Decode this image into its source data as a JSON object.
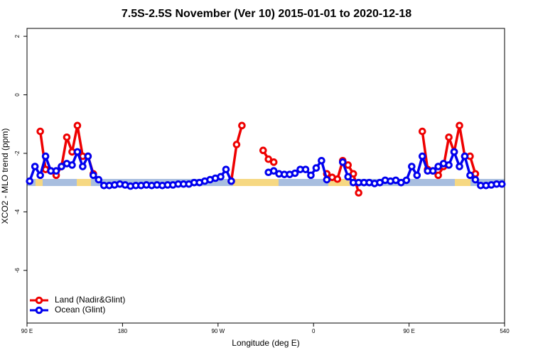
{
  "chart_data": {
    "type": "line",
    "title": "7.5S-2.5S November (Ver 10)   2015-01-01 to 2020-12-18",
    "xlabel": "Longitude (deg E)",
    "ylabel": "XCO2 - MLO trend (ppm)",
    "xlim": [
      90,
      540
    ],
    "ylim": [
      -7.8,
      2.27
    ],
    "xticks": [
      {
        "value": 90,
        "label": "90 E"
      },
      180,
      {
        "value": 270,
        "label": "90 W"
      },
      {
        "value": 360,
        "label": "0"
      },
      {
        "value": 450,
        "label": "90 E"
      },
      540
    ],
    "yticks": [
      2,
      0,
      -2,
      -4,
      -6
    ],
    "legend": "bottom-left",
    "series": [
      {
        "name": "Land (Nadir&Glint)",
        "color": "#ee0000",
        "x": [
          102.5,
          107.5,
          112.5,
          117.5,
          122.5,
          127.5,
          132.5,
          137.5,
          142.5,
          147.5,
          152.5,
          200,
          282.5,
          287.5,
          292.5,
          300,
          312.5,
          317.5,
          322.5,
          350,
          372.5,
          377.5,
          382.5,
          387.5,
          392.5,
          397.5,
          402.5,
          430,
          462.5,
          467.5,
          472.5,
          477.5,
          482.5,
          487.5,
          492.5,
          497.5,
          502.5,
          507.5,
          512.5
        ],
        "values": [
          -1.25,
          -2.55,
          -2.6,
          -2.75,
          -2.45,
          -1.45,
          -1.95,
          -1.05,
          -2.1,
          -2.1,
          -2.7,
          null,
          -2.95,
          -1.7,
          -1.05,
          null,
          -1.9,
          -2.2,
          -2.3,
          null,
          -2.7,
          -2.82,
          -2.88,
          -2.25,
          -2.4,
          -2.7,
          -3.35,
          null,
          -1.25,
          -2.55,
          -2.6,
          -2.75,
          -2.45,
          -1.45,
          -1.95,
          -1.05,
          -2.1,
          -2.1,
          -2.7
        ]
      },
      {
        "name": "Ocean (Glint)",
        "color": "#0000ee",
        "x": [
          92.5,
          97.5,
          102.5,
          107.5,
          112.5,
          117.5,
          122.5,
          127.5,
          132.5,
          137.5,
          142.5,
          147.5,
          152.5,
          157.5,
          162.5,
          167.5,
          172.5,
          177.5,
          182.5,
          187.5,
          192.5,
          197.5,
          202.5,
          207.5,
          212.5,
          217.5,
          222.5,
          227.5,
          232.5,
          237.5,
          242.5,
          247.5,
          252.5,
          257.5,
          262.5,
          267.5,
          272.5,
          277.5,
          282.5,
          300,
          317.5,
          322.5,
          327.5,
          332.5,
          337.5,
          342.5,
          347.5,
          352.5,
          357.5,
          362.5,
          367.5,
          372.5,
          380,
          387.5,
          392.5,
          397.5,
          402.5,
          407.5,
          412.5,
          417.5,
          422.5,
          427.5,
          432.5,
          437.5,
          442.5,
          447.5,
          452.5,
          457.5,
          462.5,
          467.5,
          472.5,
          477.5,
          482.5,
          487.5,
          492.5,
          497.5,
          502.5,
          507.5,
          512.5,
          517.5,
          522.5,
          527.5,
          532.5,
          537.5
        ],
        "values": [
          -2.95,
          -2.45,
          -2.75,
          -2.1,
          -2.6,
          -2.6,
          -2.45,
          -2.35,
          -2.4,
          -1.95,
          -2.45,
          -2.1,
          -2.75,
          -2.9,
          -3.1,
          -3.1,
          -3.08,
          -3.05,
          -3.08,
          -3.12,
          -3.1,
          -3.1,
          -3.08,
          -3.1,
          -3.08,
          -3.1,
          -3.08,
          -3.08,
          -3.05,
          -3.05,
          -3.05,
          -3.0,
          -3.0,
          -2.95,
          -2.9,
          -2.85,
          -2.8,
          -2.55,
          -2.95,
          null,
          -2.65,
          -2.6,
          -2.7,
          -2.72,
          -2.72,
          -2.68,
          -2.55,
          -2.55,
          -2.75,
          -2.5,
          -2.25,
          -2.9,
          null,
          -2.3,
          -2.8,
          -3.0,
          -3.0,
          -3.0,
          -3.0,
          -3.03,
          -3.0,
          -2.92,
          -2.95,
          -2.92,
          -3.0,
          -2.92,
          -2.45,
          -2.75,
          -2.1,
          -2.6,
          -2.6,
          -2.45,
          -2.35,
          -2.4,
          -1.95,
          -2.45,
          -2.1,
          -2.75,
          -2.9,
          -3.1,
          -3.1,
          -3.08,
          -3.05,
          -3.05
        ]
      }
    ]
  }
}
